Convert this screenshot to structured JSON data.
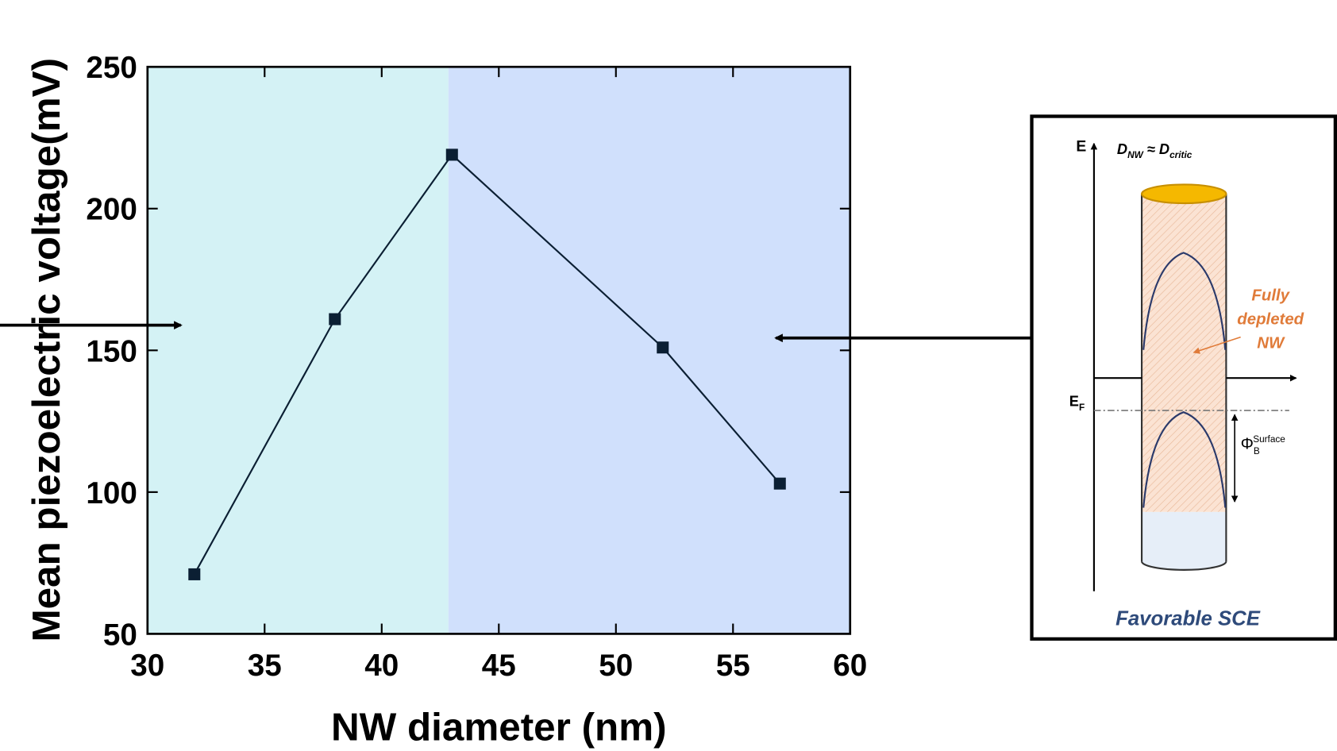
{
  "chart_data": {
    "type": "line",
    "x_label": "NW diameter (nm)",
    "y_label": "Mean piezoelectric voltage(mV)",
    "x": [
      32,
      38,
      43,
      52,
      57
    ],
    "values": [
      71,
      161,
      219,
      151,
      103
    ],
    "color": "#0b1f33",
    "xlim": [
      30,
      60
    ],
    "xticks": [
      30,
      35,
      40,
      45,
      50,
      55,
      60
    ],
    "ylim": [
      50,
      250
    ],
    "yticks": [
      50,
      100,
      150,
      200,
      250
    ],
    "regions": [
      {
        "from": 30,
        "to": 42.85,
        "color": "#d4f2f5"
      },
      {
        "from": 42.85,
        "to": 60,
        "color": "#d0e0fc"
      }
    ]
  },
  "inset": {
    "e_label": "E",
    "dnw_label": [
      "D",
      "NW",
      " ≈ ",
      "D",
      "critic"
    ],
    "annotation": [
      "Fully",
      "depleted",
      "NW"
    ],
    "ef_label": [
      "E",
      "F"
    ],
    "phi_label": [
      "Φ",
      "B",
      "Surface"
    ],
    "caption": "Favorable SCE"
  }
}
